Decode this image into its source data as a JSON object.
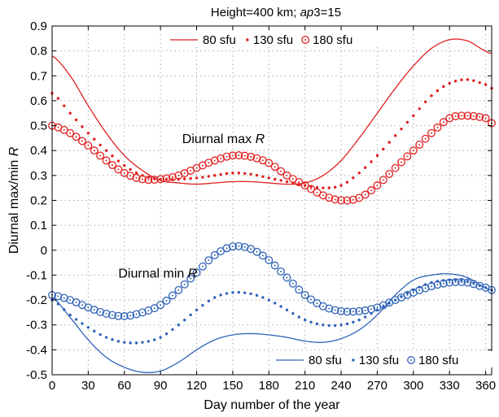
{
  "chart_data": {
    "type": "line",
    "title_parts": [
      "Height=400 km; ",
      "ap",
      "3=15"
    ],
    "xlabel": "Day number of the year",
    "ylabel_parts": [
      "Diurnal max/min ",
      "R"
    ],
    "xlim": [
      0,
      365
    ],
    "ylim": [
      -0.5,
      0.9
    ],
    "xticks": [
      0,
      30,
      60,
      90,
      120,
      150,
      180,
      210,
      240,
      270,
      300,
      330,
      360
    ],
    "yticks": [
      -0.5,
      -0.4,
      -0.3,
      -0.2,
      -0.1,
      0,
      0.1,
      0.2,
      0.3,
      0.4,
      0.5,
      0.6,
      0.7,
      0.8,
      0.9
    ],
    "ytick_labels": [
      "-0.5",
      "-0.4",
      "-0.3",
      "-0.2",
      "-0.1",
      "0",
      "0.1",
      "0.2",
      "0.3",
      "0.4",
      "0.5",
      "0.6",
      "0.7",
      "0.8",
      "0.9"
    ],
    "grid": true,
    "annotations": [
      {
        "parts": [
          "Diurnal max ",
          "R"
        ],
        "x": 108,
        "y": 0.43
      },
      {
        "parts": [
          "Diurnal min ",
          "R"
        ],
        "x": 55,
        "y": -0.11
      }
    ],
    "legends": [
      {
        "group": "max",
        "entries": [
          {
            "label": "80 sfu",
            "style": "line"
          },
          {
            "label": "130 sfu",
            "style": "dots"
          },
          {
            "label": "180 sfu",
            "style": "circles"
          }
        ]
      },
      {
        "group": "min",
        "entries": [
          {
            "label": "80 sfu",
            "style": "line"
          },
          {
            "label": "130 sfu",
            "style": "dots"
          },
          {
            "label": "180 sfu",
            "style": "circles"
          }
        ]
      }
    ],
    "colors": {
      "max": "#e02020",
      "min": "#2f63b8"
    },
    "series": [
      {
        "group": "max",
        "label": "80 sfu",
        "style": "line",
        "x": [
          0,
          15,
          30,
          45,
          60,
          75,
          90,
          105,
          120,
          135,
          150,
          165,
          180,
          195,
          210,
          225,
          240,
          255,
          270,
          285,
          300,
          315,
          330,
          345,
          360,
          365
        ],
        "y": [
          0.78,
          0.7,
          0.58,
          0.47,
          0.38,
          0.32,
          0.28,
          0.27,
          0.265,
          0.27,
          0.275,
          0.275,
          0.27,
          0.265,
          0.27,
          0.3,
          0.36,
          0.45,
          0.55,
          0.65,
          0.74,
          0.81,
          0.845,
          0.84,
          0.8,
          0.79
        ]
      },
      {
        "group": "max",
        "label": "130 sfu",
        "style": "dots",
        "x": [
          0,
          15,
          30,
          45,
          60,
          75,
          90,
          105,
          120,
          135,
          150,
          165,
          180,
          195,
          210,
          225,
          240,
          255,
          270,
          285,
          300,
          315,
          330,
          345,
          360,
          365
        ],
        "y": [
          0.63,
          0.55,
          0.47,
          0.4,
          0.34,
          0.3,
          0.285,
          0.285,
          0.29,
          0.3,
          0.31,
          0.305,
          0.29,
          0.275,
          0.26,
          0.25,
          0.26,
          0.31,
          0.38,
          0.46,
          0.54,
          0.62,
          0.67,
          0.685,
          0.665,
          0.65
        ]
      },
      {
        "group": "max",
        "label": "180 sfu",
        "style": "circles",
        "x": [
          0,
          15,
          30,
          45,
          60,
          75,
          90,
          105,
          120,
          135,
          150,
          165,
          180,
          195,
          210,
          225,
          240,
          255,
          270,
          285,
          300,
          315,
          330,
          345,
          360,
          365
        ],
        "y": [
          0.5,
          0.47,
          0.42,
          0.36,
          0.31,
          0.285,
          0.285,
          0.3,
          0.33,
          0.36,
          0.38,
          0.375,
          0.35,
          0.3,
          0.26,
          0.22,
          0.2,
          0.21,
          0.26,
          0.33,
          0.4,
          0.47,
          0.53,
          0.54,
          0.53,
          0.51
        ]
      },
      {
        "group": "min",
        "label": "80 sfu",
        "style": "line",
        "x": [
          0,
          15,
          30,
          45,
          60,
          75,
          90,
          105,
          120,
          135,
          150,
          165,
          180,
          195,
          210,
          225,
          240,
          255,
          270,
          285,
          300,
          315,
          330,
          345,
          360,
          365
        ],
        "y": [
          -0.19,
          -0.27,
          -0.36,
          -0.43,
          -0.47,
          -0.49,
          -0.485,
          -0.45,
          -0.4,
          -0.36,
          -0.34,
          -0.335,
          -0.34,
          -0.35,
          -0.365,
          -0.37,
          -0.355,
          -0.32,
          -0.26,
          -0.18,
          -0.12,
          -0.1,
          -0.095,
          -0.11,
          -0.15,
          -0.16
        ]
      },
      {
        "group": "min",
        "label": "130 sfu",
        "style": "dots",
        "x": [
          0,
          15,
          30,
          45,
          60,
          75,
          90,
          105,
          120,
          135,
          150,
          165,
          180,
          195,
          210,
          225,
          240,
          255,
          270,
          285,
          300,
          315,
          330,
          345,
          360,
          365
        ],
        "y": [
          -0.2,
          -0.26,
          -0.31,
          -0.35,
          -0.37,
          -0.37,
          -0.35,
          -0.3,
          -0.24,
          -0.19,
          -0.17,
          -0.175,
          -0.2,
          -0.24,
          -0.28,
          -0.3,
          -0.3,
          -0.28,
          -0.24,
          -0.2,
          -0.16,
          -0.13,
          -0.12,
          -0.125,
          -0.15,
          -0.16
        ]
      },
      {
        "group": "min",
        "label": "180 sfu",
        "style": "circles",
        "x": [
          0,
          15,
          30,
          45,
          60,
          75,
          90,
          105,
          120,
          135,
          150,
          165,
          180,
          195,
          210,
          225,
          240,
          255,
          270,
          285,
          300,
          315,
          330,
          345,
          360,
          365
        ],
        "y": [
          -0.18,
          -0.2,
          -0.23,
          -0.255,
          -0.265,
          -0.25,
          -0.22,
          -0.16,
          -0.09,
          -0.02,
          0.015,
          0.005,
          -0.04,
          -0.11,
          -0.18,
          -0.225,
          -0.245,
          -0.245,
          -0.23,
          -0.2,
          -0.17,
          -0.145,
          -0.13,
          -0.13,
          -0.15,
          -0.16
        ]
      }
    ]
  }
}
